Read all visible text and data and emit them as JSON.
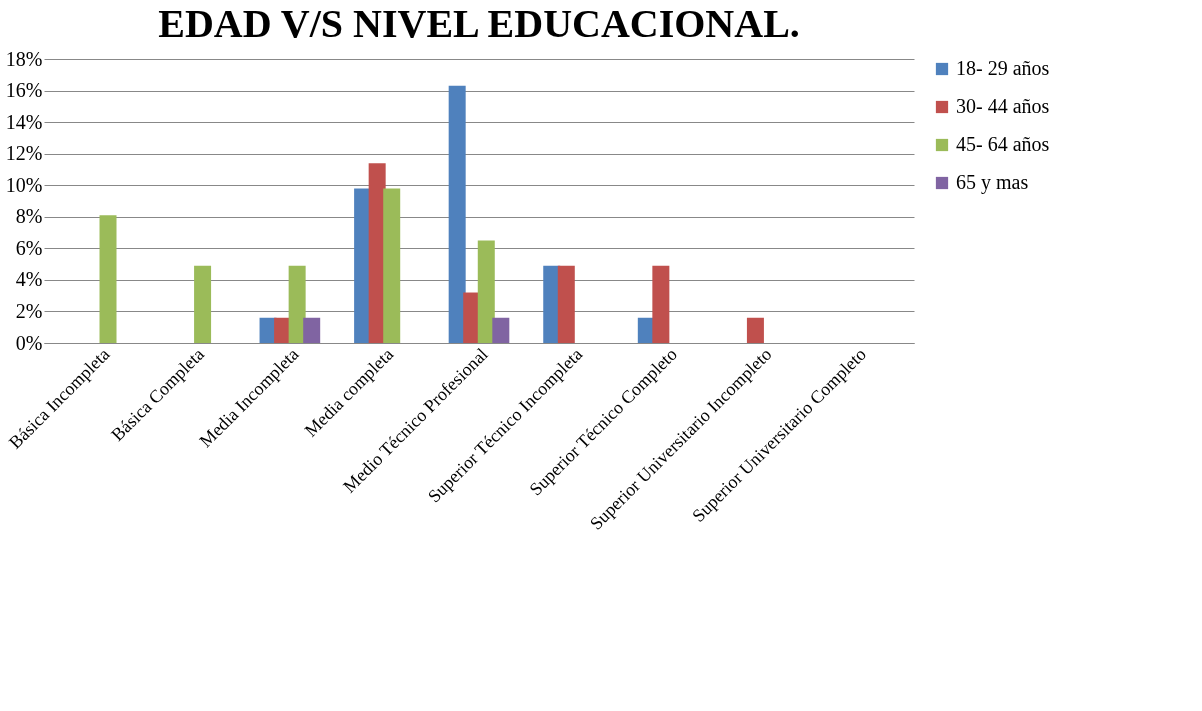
{
  "chart_data": {
    "type": "bar",
    "title": "EDAD V/S NIVEL EDUCACIONAL.",
    "categories": [
      "Básica Incompleta",
      "Básica Completa",
      "Media Incompleta",
      "Media completa",
      "Medio Técnico Profesional",
      "Superior Técnico Incompleta",
      "Superior Técnico Completo",
      "Superior Universitario Incompleto",
      "Superior Universitario Completo"
    ],
    "series": [
      {
        "name": "18- 29 años",
        "color": "#4f81bd",
        "values": [
          0,
          0,
          1.6,
          9.8,
          16.3,
          4.9,
          1.6,
          0,
          0
        ]
      },
      {
        "name": "30- 44 años",
        "color": "#c0504d",
        "values": [
          0,
          0,
          1.6,
          11.4,
          3.2,
          4.9,
          4.9,
          1.6,
          0
        ]
      },
      {
        "name": "45- 64 años",
        "color": "#9bbb59",
        "values": [
          8.1,
          4.9,
          4.9,
          9.8,
          6.5,
          0,
          0,
          0,
          0
        ]
      },
      {
        "name": "65 y mas",
        "color": "#8064a2",
        "values": [
          0,
          0,
          1.6,
          0,
          1.6,
          0,
          0,
          0,
          0
        ]
      }
    ],
    "ylim": [
      0,
      18
    ],
    "yticks": [
      {
        "value": 0,
        "label": "0%"
      },
      {
        "value": 2,
        "label": "2%"
      },
      {
        "value": 4,
        "label": "4%"
      },
      {
        "value": 6,
        "label": "6%"
      },
      {
        "value": 8,
        "label": "8%"
      },
      {
        "value": 10,
        "label": "10%"
      },
      {
        "value": 12,
        "label": "12%"
      },
      {
        "value": 14,
        "label": "14%"
      },
      {
        "value": 16,
        "label": "16%"
      },
      {
        "value": 18,
        "label": "18%"
      }
    ],
    "grid": "y",
    "legend": "right"
  }
}
